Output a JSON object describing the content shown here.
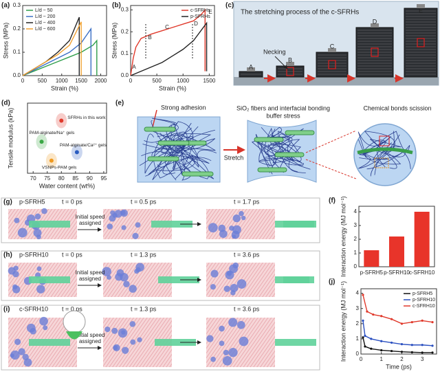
{
  "chart_data": [
    {
      "type": "line",
      "panel": "(a)",
      "xlabel": "Strain (%)",
      "ylabel": "Stress (MPa)",
      "xlim": [
        0,
        2150
      ],
      "ylim": [
        0,
        0.3
      ],
      "xticks": [
        0,
        500,
        1000,
        1500,
        2000
      ],
      "yticks": [
        {
          "value": 0,
          "label": "0.0"
        },
        0.1,
        0.2,
        0.3
      ],
      "legend": "upper left",
      "series": [
        {
          "name": "L/d ~ 50",
          "color": "#2e9e4a",
          "x": [
            0,
            300,
            600,
            900,
            1200,
            1500,
            1800,
            1900,
            1900
          ],
          "values": [
            0,
            0.02,
            0.04,
            0.06,
            0.08,
            0.1,
            0.13,
            0.15,
            0
          ]
        },
        {
          "name": "L/d ~ 200",
          "color": "#3a6fc4",
          "x": [
            0,
            300,
            600,
            900,
            1200,
            1500,
            1750,
            1750
          ],
          "values": [
            0,
            0.025,
            0.05,
            0.075,
            0.1,
            0.14,
            0.2,
            0
          ]
        },
        {
          "name": "L/d ~ 400",
          "color": "#222222",
          "x": [
            0,
            300,
            600,
            900,
            1200,
            1450,
            1450
          ],
          "values": [
            0,
            0.03,
            0.06,
            0.1,
            0.15,
            0.25,
            0
          ]
        },
        {
          "name": "L/d ~ 600",
          "color": "#f0a030",
          "x": [
            0,
            300,
            600,
            900,
            1200,
            1500,
            1500
          ],
          "values": [
            0,
            0.03,
            0.06,
            0.09,
            0.13,
            0.23,
            0
          ]
        }
      ]
    },
    {
      "type": "line",
      "panel": "(b)",
      "xlabel": "Strain (%)",
      "ylabel": "Stress (MPa)",
      "xlim": [
        0,
        1600
      ],
      "ylim": [
        0,
        0.32
      ],
      "xticks": [
        0,
        500,
        1000,
        1500
      ],
      "yticks": [
        {
          "value": 0,
          "label": "0.0"
        },
        0.1,
        0.2,
        0.3
      ],
      "legend": "upper right",
      "annotations": [
        "A",
        "B",
        "C",
        "D",
        "E"
      ],
      "series": [
        {
          "name": "c-SFRHs",
          "color": "#e0392b",
          "x": [
            0,
            50,
            100,
            200,
            400,
            600,
            800,
            1000,
            1200,
            1350,
            1420,
            1420
          ],
          "values": [
            0,
            0.08,
            0.13,
            0.17,
            0.19,
            0.205,
            0.22,
            0.235,
            0.25,
            0.28,
            0.3,
            0.02
          ]
        },
        {
          "name": "p-SFRHs",
          "color": "#222222",
          "x": [
            0,
            200,
            400,
            600,
            800,
            1000,
            1200,
            1450,
            1450
          ],
          "values": [
            0,
            0.02,
            0.04,
            0.06,
            0.09,
            0.12,
            0.16,
            0.24,
            0.02
          ]
        }
      ]
    },
    {
      "type": "scatter",
      "panel": "(d)",
      "xlabel": "Water content (wt%)",
      "ylabel": "Tensile modulus (kPa)",
      "xlim": [
        68,
        96
      ],
      "ylim": [
        0,
        100
      ],
      "xticks": [
        70,
        75,
        80,
        85,
        90,
        95
      ],
      "series": [
        {
          "name": "PAM-alginate/Na⁺ gels",
          "color": "#3aa845",
          "x": [
            73
          ],
          "values": [
            45
          ]
        },
        {
          "name": "SFRHs in this work",
          "color": "#e0392b",
          "x": [
            80
          ],
          "values": [
            75
          ]
        },
        {
          "name": "PAM-alginate/Ca²⁺ gels",
          "color": "#2a5cc0",
          "x": [
            85.5
          ],
          "values": [
            30
          ]
        },
        {
          "name": "VSNPs-PAM gels",
          "color": "#f09a20",
          "x": [
            76.5
          ],
          "values": [
            18
          ]
        }
      ]
    },
    {
      "type": "bar",
      "panel": "(f)",
      "ylabel": "Interaction energy (MJ mol⁻¹)",
      "color": "#e8342a",
      "categories": [
        "p-SFRH5",
        "p-SFRH10",
        "c-SFRH10"
      ],
      "values": [
        1.2,
        2.2,
        4.0
      ],
      "ylim": [
        0,
        4.4
      ],
      "yticks": [
        0,
        1,
        2,
        3,
        4
      ]
    },
    {
      "type": "line",
      "panel": "(j)",
      "xlabel": "Time (ps)",
      "ylabel": "Interaction energy (MJ mol⁻¹)",
      "xlim": [
        0,
        3.7
      ],
      "ylim": [
        0,
        4.3
      ],
      "xticks": [
        0,
        1,
        2,
        3
      ],
      "yticks": [
        0,
        1,
        2,
        3,
        4
      ],
      "legend": "upper right",
      "markers": true,
      "series": [
        {
          "name": "p-SFRH5",
          "color": "#111111",
          "x": [
            0.1,
            0.2,
            0.5,
            1,
            1.5,
            2,
            2.5,
            3,
            3.5
          ],
          "values": [
            1.1,
            0.5,
            0.35,
            0.25,
            0.2,
            0.15,
            0.12,
            0.1,
            0.1
          ]
        },
        {
          "name": "p-SFRH10",
          "color": "#2a4fc0",
          "x": [
            0.1,
            0.2,
            0.5,
            1,
            1.5,
            2,
            2.5,
            3,
            3.5
          ],
          "values": [
            2.2,
            1.2,
            1.0,
            0.85,
            0.75,
            0.65,
            0.6,
            0.6,
            0.55
          ]
        },
        {
          "name": "c-SFRH10",
          "color": "#e0392b",
          "x": [
            0.1,
            0.3,
            0.6,
            1,
            1.5,
            2,
            2.5,
            3,
            3.5
          ],
          "values": [
            3.9,
            2.8,
            2.6,
            2.5,
            2.3,
            2.0,
            2.1,
            2.2,
            2.1
          ]
        }
      ]
    }
  ],
  "panels": {
    "c": {
      "label": "(c)",
      "title": "The stretching process of the c-SFRHs",
      "stages": [
        "A",
        "B",
        "C",
        "D",
        "E"
      ],
      "necking": "Necking"
    },
    "e": {
      "label": "(e)",
      "adhesion": "Strong adhesion",
      "stretch": "Stretch",
      "fibers": [
        "SiO₂ fibers and interfacial bonding",
        "buffer stress"
      ],
      "scission": "Chemical bonds scission"
    },
    "g": {
      "label": "(g)",
      "system": "p-SFRH5",
      "times": [
        "t = 0 ps",
        "t = 0.5 ps",
        "t = 1.7 ps"
      ],
      "arrow_text": [
        "Initial speed",
        "assigned"
      ]
    },
    "h": {
      "label": "(h)",
      "system": "p-SFRH10",
      "times": [
        "t = 0 ps",
        "t = 1.3 ps",
        "t = 3.6 ps"
      ],
      "arrow_text": [
        "Initial speed",
        "assigned"
      ]
    },
    "i": {
      "label": "(i)",
      "system": "c-SFRH10",
      "times": [
        "t = 0 ps",
        "t = 1.3 ps",
        "t = 3.6 ps"
      ],
      "arrow_text": [
        "Initial speed",
        "assigned"
      ]
    }
  }
}
